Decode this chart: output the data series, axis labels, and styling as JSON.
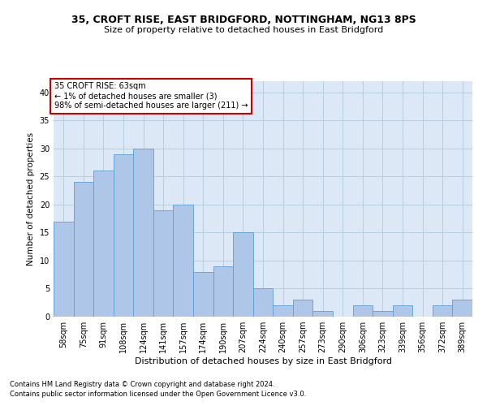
{
  "title1": "35, CROFT RISE, EAST BRIDGFORD, NOTTINGHAM, NG13 8PS",
  "title2": "Size of property relative to detached houses in East Bridgford",
  "xlabel": "Distribution of detached houses by size in East Bridgford",
  "ylabel": "Number of detached properties",
  "footnote1": "Contains HM Land Registry data © Crown copyright and database right 2024.",
  "footnote2": "Contains public sector information licensed under the Open Government Licence v3.0.",
  "annotation_title": "35 CROFT RISE: 63sqm",
  "annotation_line1": "← 1% of detached houses are smaller (3)",
  "annotation_line2": "98% of semi-detached houses are larger (211) →",
  "bar_labels": [
    "58sqm",
    "75sqm",
    "91sqm",
    "108sqm",
    "124sqm",
    "141sqm",
    "157sqm",
    "174sqm",
    "190sqm",
    "207sqm",
    "224sqm",
    "240sqm",
    "257sqm",
    "273sqm",
    "290sqm",
    "306sqm",
    "323sqm",
    "339sqm",
    "356sqm",
    "372sqm",
    "389sqm"
  ],
  "bar_values": [
    17,
    24,
    26,
    29,
    30,
    19,
    20,
    8,
    9,
    15,
    5,
    2,
    3,
    1,
    0,
    2,
    1,
    2,
    0,
    2,
    3
  ],
  "bar_color": "#aec6e8",
  "bar_edge_color": "#5a9fd4",
  "ylim": [
    0,
    42
  ],
  "yticks": [
    0,
    5,
    10,
    15,
    20,
    25,
    30,
    35,
    40
  ],
  "bg_color": "#ffffff",
  "plot_bg_color": "#dce8f5",
  "grid_color": "#b8cfe0",
  "annotation_box_color": "#ffffff",
  "annotation_box_edge": "#cc0000",
  "title1_fontsize": 9,
  "title2_fontsize": 8,
  "xlabel_fontsize": 8,
  "ylabel_fontsize": 7.5,
  "tick_fontsize": 7,
  "annotation_fontsize": 7,
  "footnote_fontsize": 6
}
